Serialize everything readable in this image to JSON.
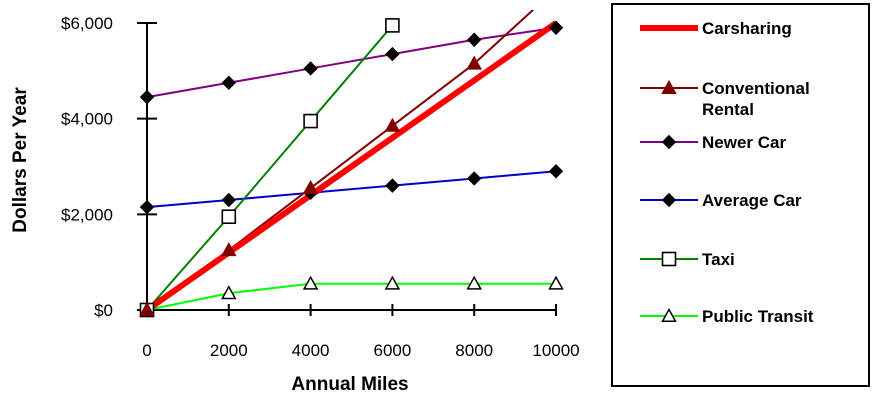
{
  "chart_data": {
    "type": "line",
    "xlabel": "Annual Miles",
    "ylabel": "Dollars Per Year",
    "xlim": [
      0,
      10000
    ],
    "ylim": [
      0,
      6000
    ],
    "x_ticks": [
      "0",
      "2000",
      "4000",
      "6000",
      "8000",
      "10000"
    ],
    "y_ticks": [
      "$0",
      "$2,000",
      "$4,000",
      "$6,000"
    ],
    "x_tick_values": [
      0,
      2000,
      4000,
      6000,
      8000,
      10000
    ],
    "y_tick_values": [
      0,
      2000,
      4000,
      6000
    ],
    "grid": false,
    "legend_position": "right",
    "series": [
      {
        "name": "Carsharing",
        "color": "#ff0000",
        "marker": "none",
        "line_width": "thick",
        "points": [
          [
            0,
            0
          ],
          [
            10000,
            6000
          ]
        ]
      },
      {
        "name": "Conventional Rental",
        "color": "#800000",
        "marker": "triangle-filled",
        "line_width": "thin",
        "points": [
          [
            0,
            0
          ],
          [
            2000,
            1250
          ],
          [
            4000,
            2550
          ],
          [
            6000,
            3850
          ],
          [
            8000,
            5150
          ],
          [
            9600,
            6400
          ]
        ]
      },
      {
        "name": "Newer Car",
        "color": "#800080",
        "marker": "diamond-filled",
        "line_width": "thin",
        "points": [
          [
            0,
            4450
          ],
          [
            2000,
            4750
          ],
          [
            4000,
            5050
          ],
          [
            6000,
            5350
          ],
          [
            8000,
            5650
          ],
          [
            10000,
            5900
          ]
        ]
      },
      {
        "name": "Average Car",
        "color": "#0000cc",
        "marker": "diamond-filled",
        "line_width": "thin",
        "points": [
          [
            0,
            2150
          ],
          [
            2000,
            2300
          ],
          [
            4000,
            2450
          ],
          [
            6000,
            2600
          ],
          [
            8000,
            2750
          ],
          [
            10000,
            2900
          ]
        ]
      },
      {
        "name": "Taxi",
        "color": "#008000",
        "marker": "square-open",
        "line_width": "thin",
        "points": [
          [
            0,
            0
          ],
          [
            2000,
            1950
          ],
          [
            4000,
            3950
          ],
          [
            6000,
            5950
          ]
        ]
      },
      {
        "name": "Public Transit",
        "color": "#00ff00",
        "marker": "triangle-open",
        "line_width": "thin",
        "points": [
          [
            0,
            0
          ],
          [
            2000,
            350
          ],
          [
            4000,
            550
          ],
          [
            6000,
            550
          ],
          [
            8000,
            550
          ],
          [
            10000,
            550
          ]
        ]
      }
    ],
    "legend_labels": [
      [
        "Carsharing"
      ],
      [
        "Conventional",
        "Rental"
      ],
      [
        "Newer Car"
      ],
      [
        "Average Car"
      ],
      [
        "Taxi"
      ],
      [
        "Public Transit"
      ]
    ]
  }
}
